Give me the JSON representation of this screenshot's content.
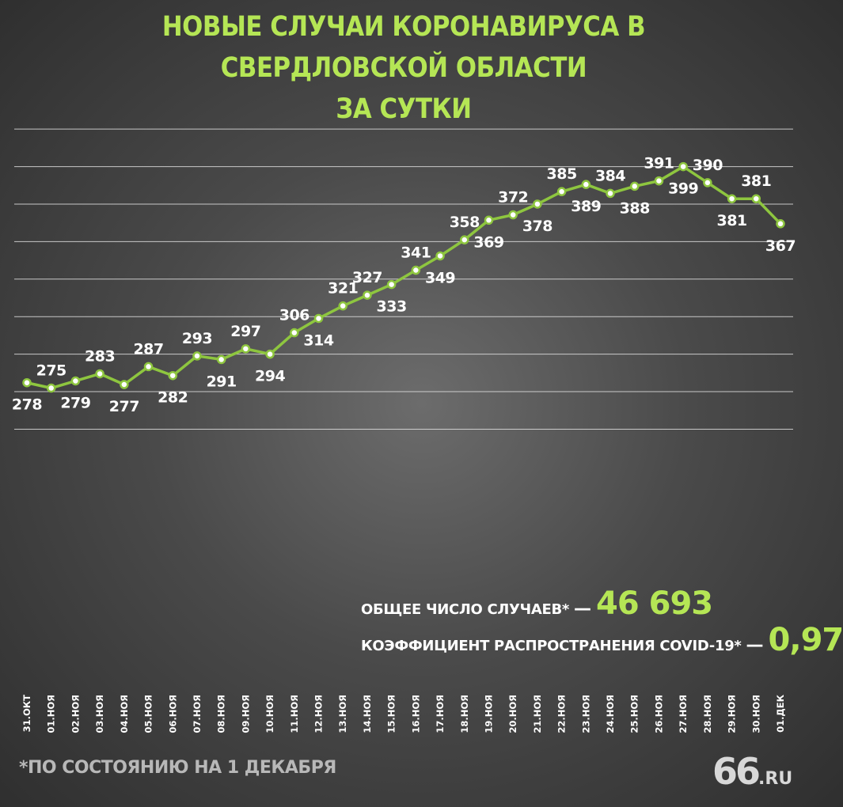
{
  "title_line1": "НОВЫЕ СЛУЧАИ КОРОНАВИРУСА В СВЕРДЛОВСКОЙ ОБЛАСТИ",
  "title_line2": "ЗА СУТКИ",
  "stats": {
    "total_label": "ОБЩЕЕ ЧИСЛО СЛУЧАЕВ*",
    "total_dash": "—",
    "total_value": "46 693",
    "rate_label": "КОЭФФИЦИЕНТ РАСПРОСТРАНЕНИЯ COVID-19*",
    "rate_dash": "—",
    "rate_value": "0,97"
  },
  "footnote": "*ПО СОСТОЯНИЮ НА 1 ДЕКАБРЯ",
  "logo": {
    "number": "66",
    "domain": ".RU"
  },
  "colors": {
    "accent": "#b5e655",
    "line": "#8ec63f",
    "text": "#ffffff",
    "grid": "#e0e0e0"
  },
  "chart_data": {
    "type": "line",
    "categories": [
      "31.ОКТ",
      "01.НОЯ",
      "02.НОЯ",
      "03.НОЯ",
      "04.НОЯ",
      "05.НОЯ",
      "06.НОЯ",
      "07.НОЯ",
      "08.НОЯ",
      "09.НОЯ",
      "10.НОЯ",
      "11.НОЯ",
      "12.НОЯ",
      "13.НОЯ",
      "14.НОЯ",
      "15.НОЯ",
      "16.НОЯ",
      "17.НОЯ",
      "18.НОЯ",
      "19.НОЯ",
      "20.НОЯ",
      "21.НОЯ",
      "22.НОЯ",
      "23.НОЯ",
      "24.НОЯ",
      "25.НОЯ",
      "26.НОЯ",
      "27.НОЯ",
      "28.НОЯ",
      "29.НОЯ",
      "30.НОЯ",
      "01.ДЕК"
    ],
    "series": [
      {
        "values": [
          278,
          275,
          279,
          283,
          277,
          287,
          282,
          293,
          291,
          297,
          294,
          306,
          314,
          321,
          327,
          333,
          341,
          349,
          358,
          369,
          372,
          378,
          385,
          389,
          384,
          388,
          391,
          399,
          390,
          381,
          381,
          367
        ]
      }
    ],
    "label_positions": [
      "below",
      "above",
      "below",
      "above",
      "below",
      "above",
      "below",
      "above",
      "below",
      "above",
      "below",
      "above",
      "below",
      "above",
      "above",
      "below",
      "above",
      "below",
      "above",
      "below",
      "above",
      "below",
      "above",
      "below",
      "above",
      "below",
      "above",
      "below",
      "above",
      "below",
      "above",
      "below"
    ],
    "ylim": [
      180,
      440
    ],
    "gridlines": [
      420,
      399,
      378,
      357,
      336,
      315,
      294,
      273,
      252
    ],
    "grid": true
  }
}
